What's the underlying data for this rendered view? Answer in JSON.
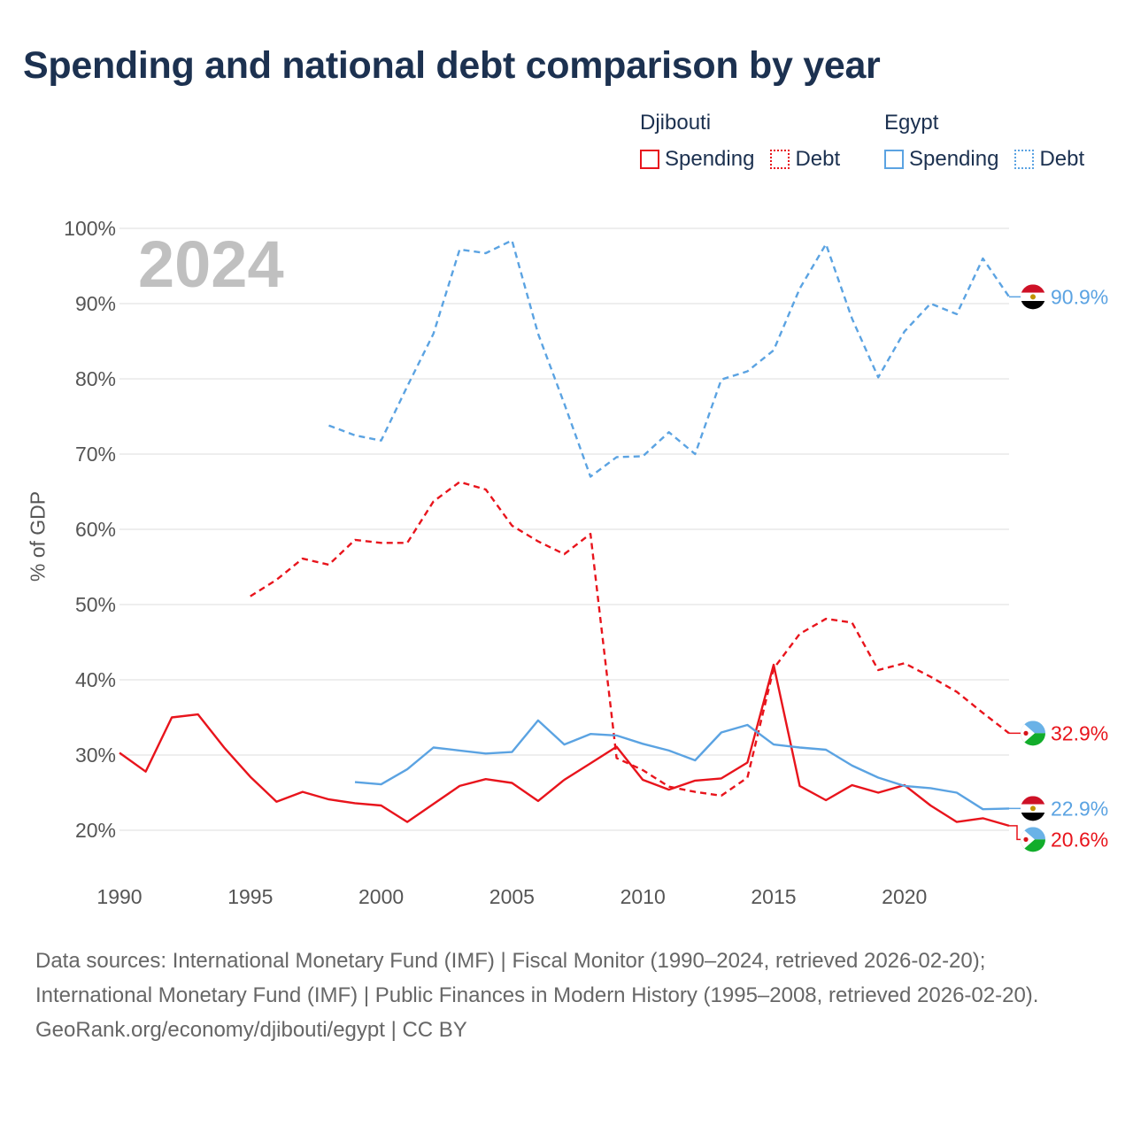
{
  "title": "Spending and national debt comparison by year",
  "legend": {
    "groups": [
      {
        "name": "Djibouti",
        "color": "#e8141c",
        "spending_label": "Spending",
        "debt_label": "Debt"
      },
      {
        "name": "Egypt",
        "color": "#5ba3e2",
        "spending_label": "Spending",
        "debt_label": "Debt"
      }
    ]
  },
  "year_watermark": "2024",
  "chart_data": {
    "type": "line",
    "title": "Spending and national debt comparison by year",
    "xlabel": "",
    "ylabel": "% of GDP",
    "xlim": [
      1990,
      2024
    ],
    "ylim": [
      20,
      100
    ],
    "x_ticks": [
      1990,
      1995,
      2000,
      2005,
      2010,
      2015,
      2020
    ],
    "x_tick_labels": [
      "1990",
      "1995",
      "2000",
      "2005",
      "2010",
      "2015",
      "2020"
    ],
    "y_ticks": [
      20,
      30,
      40,
      50,
      60,
      70,
      80,
      90,
      100
    ],
    "y_tick_labels": [
      "20%",
      "30%",
      "40%",
      "50%",
      "60%",
      "70%",
      "80%",
      "90%",
      "100%"
    ],
    "grid": true,
    "series": [
      {
        "name": "Djibouti Spending",
        "country": "Djibouti",
        "measure": "Spending",
        "color": "#e8141c",
        "style": "solid",
        "x": [
          1990,
          1991,
          1992,
          1993,
          1994,
          1995,
          1996,
          1997,
          1998,
          1999,
          2000,
          2001,
          2002,
          2003,
          2004,
          2005,
          2006,
          2007,
          2008,
          2009,
          2010,
          2011,
          2012,
          2013,
          2014,
          2015,
          2016,
          2017,
          2018,
          2019,
          2020,
          2021,
          2022,
          2023,
          2024
        ],
        "values": [
          30.3,
          27.8,
          35.0,
          35.4,
          31.0,
          27.1,
          23.8,
          25.1,
          24.1,
          23.6,
          23.3,
          21.1,
          23.5,
          25.9,
          26.8,
          26.3,
          23.9,
          26.7,
          28.9,
          31.1,
          26.7,
          25.4,
          26.6,
          26.9,
          29.0,
          42.0,
          25.9,
          24.0,
          26.0,
          25.0,
          26.0,
          23.3,
          21.1,
          21.6,
          20.6
        ],
        "end_label": "20.6%"
      },
      {
        "name": "Djibouti Debt",
        "country": "Djibouti",
        "measure": "Debt",
        "color": "#e8141c",
        "style": "dashed",
        "x": [
          1995,
          1996,
          1997,
          1998,
          1999,
          2000,
          2001,
          2002,
          2003,
          2004,
          2005,
          2006,
          2007,
          2008,
          2009,
          2010,
          2011,
          2012,
          2013,
          2014,
          2015,
          2016,
          2017,
          2018,
          2019,
          2020,
          2021,
          2022,
          2023,
          2024
        ],
        "values": [
          51.1,
          53.3,
          56.1,
          55.3,
          58.6,
          58.2,
          58.2,
          63.7,
          66.3,
          65.3,
          60.5,
          58.4,
          56.7,
          59.4,
          29.6,
          28.0,
          25.8,
          25.1,
          24.6,
          27.0,
          41.5,
          46.1,
          48.1,
          47.6,
          41.3,
          42.2,
          40.4,
          38.4,
          35.6,
          32.9
        ],
        "end_label": "32.9%"
      },
      {
        "name": "Egypt Spending",
        "country": "Egypt",
        "measure": "Spending",
        "color": "#5ba3e2",
        "style": "solid",
        "x": [
          1999,
          2000,
          2001,
          2002,
          2003,
          2004,
          2005,
          2006,
          2007,
          2008,
          2009,
          2010,
          2011,
          2012,
          2013,
          2014,
          2015,
          2016,
          2017,
          2018,
          2019,
          2020,
          2021,
          2022,
          2023,
          2024
        ],
        "values": [
          26.4,
          26.1,
          28.1,
          31.0,
          30.6,
          30.2,
          30.4,
          34.6,
          31.4,
          32.8,
          32.6,
          31.5,
          30.6,
          29.3,
          33.0,
          34.0,
          31.4,
          31.0,
          30.7,
          28.6,
          27.0,
          25.9,
          25.6,
          25.0,
          22.8,
          22.9
        ],
        "end_label": "22.9%"
      },
      {
        "name": "Egypt Debt",
        "country": "Egypt",
        "measure": "Debt",
        "color": "#5ba3e2",
        "style": "dashed",
        "x": [
          1998,
          1999,
          2000,
          2001,
          2002,
          2003,
          2004,
          2005,
          2006,
          2007,
          2008,
          2009,
          2010,
          2011,
          2012,
          2013,
          2014,
          2015,
          2016,
          2017,
          2018,
          2019,
          2020,
          2021,
          2022,
          2023,
          2024
        ],
        "values": [
          73.8,
          72.5,
          71.8,
          79.0,
          86.0,
          97.2,
          96.7,
          98.4,
          86.0,
          76.7,
          67.0,
          69.6,
          69.7,
          72.9,
          70.0,
          79.9,
          81.0,
          83.8,
          92.0,
          97.9,
          88.0,
          80.2,
          86.3,
          90.0,
          88.6,
          96.0,
          90.9
        ],
        "end_label": "90.9%"
      }
    ]
  },
  "footer": {
    "sources": "Data sources: International Monetary Fund (IMF) | Fiscal Monitor (1990–2024, retrieved 2026-02-20); International Monetary Fund (IMF) | Public Finances in Modern History (1995–2008, retrieved 2026-02-20).",
    "attribution": "GeoRank.org/economy/djibouti/egypt | CC BY"
  }
}
